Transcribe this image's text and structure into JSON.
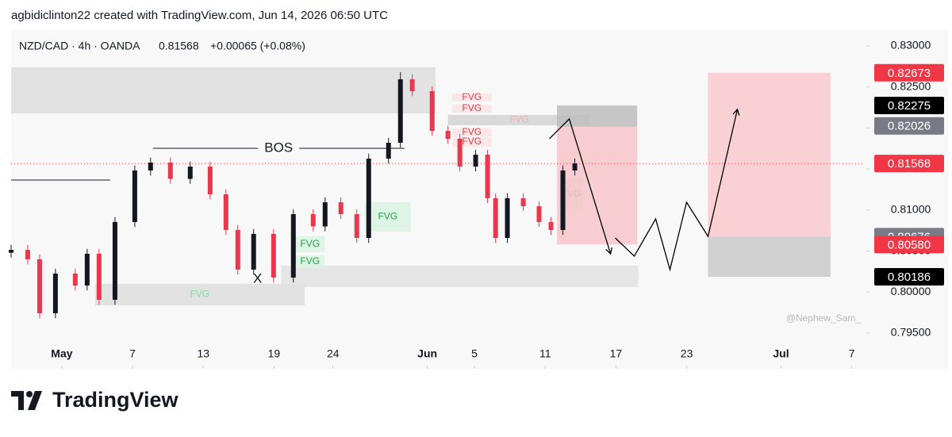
{
  "header": {
    "credit": "agbidiclinton22 created with TradingView.com, Jun 14, 2026 06:50 UTC"
  },
  "footer": {
    "brand": "TradingView"
  },
  "chart_data": {
    "type": "candlestick",
    "title": "NZD/CAD · 4h · OANDA",
    "last": 0.81568,
    "change_label": "+0.00065 (+0.08%)",
    "watermark": "@Nephew_Sam_",
    "up_color": "#131722",
    "down_color": "#e8384f",
    "x": [
      -3.3,
      -1.89,
      -0.88,
      0.46,
      2.14,
      3.15,
      4.16,
      5.51,
      7.19,
      8.53,
      10.21,
      11.89,
      13.58,
      14.92,
      15.93,
      17.27,
      18.96,
      20.64,
      22.32,
      23.33,
      24.67,
      26.02,
      27.03,
      28.71,
      29.72,
      30.72,
      32.41,
      33.75,
      34.76,
      36.1,
      37.11,
      37.79,
      38.79,
      40.14,
      41.48,
      42.49,
      43.5,
      44.51
    ],
    "open": [
      0.8048,
      0.80515,
      0.804,
      0.79742,
      0.80225,
      0.8008,
      0.80467,
      0.79906,
      0.80854,
      0.81482,
      0.81579,
      0.8138,
      0.8153,
      0.81192,
      0.80757,
      0.80274,
      0.80709,
      0.80177,
      0.8095,
      0.808,
      0.81095,
      0.8095,
      0.8066,
      0.81627,
      0.8182,
      0.82594,
      0.82449,
      0.81965,
      0.81869,
      0.8153,
      0.81675,
      0.81144,
      0.8066,
      0.81144,
      0.81047,
      0.80854,
      0.80757,
      0.81482
    ],
    "high": [
      0.80575,
      0.80575,
      0.8046,
      0.80285,
      0.80285,
      0.80527,
      0.80527,
      0.80914,
      0.81542,
      0.81639,
      0.81639,
      0.8159,
      0.8159,
      0.81252,
      0.80817,
      0.80769,
      0.80769,
      0.8101,
      0.8101,
      0.81155,
      0.81155,
      0.8101,
      0.81687,
      0.8188,
      0.8268,
      0.82654,
      0.82509,
      0.82025,
      0.81929,
      0.81735,
      0.81735,
      0.81204,
      0.81204,
      0.81204,
      0.81107,
      0.80914,
      0.81542,
      0.81628
    ],
    "low": [
      0.8042,
      0.8034,
      0.79682,
      0.79682,
      0.8002,
      0.8002,
      0.79846,
      0.79846,
      0.80794,
      0.81422,
      0.8132,
      0.8132,
      0.81132,
      0.80697,
      0.80214,
      0.80214,
      0.80117,
      0.80117,
      0.8074,
      0.8074,
      0.8089,
      0.806,
      0.806,
      0.81567,
      0.8176,
      0.82389,
      0.81905,
      0.81809,
      0.8147,
      0.8147,
      0.81084,
      0.806,
      0.806,
      0.80987,
      0.80794,
      0.80697,
      0.80697,
      0.81422
    ],
    "close": [
      0.80515,
      0.804,
      0.79742,
      0.80225,
      0.8008,
      0.80467,
      0.79906,
      0.80854,
      0.81482,
      0.81579,
      0.8138,
      0.8153,
      0.81192,
      0.80757,
      0.80274,
      0.80709,
      0.80177,
      0.8095,
      0.808,
      0.81095,
      0.8095,
      0.8066,
      0.81627,
      0.8182,
      0.82594,
      0.82449,
      0.81965,
      0.81869,
      0.8153,
      0.81675,
      0.81144,
      0.8066,
      0.81144,
      0.81047,
      0.80854,
      0.80757,
      0.81482,
      0.81568
    ],
    "xlim": [
      -3.3,
      69.1
    ],
    "xticks": [
      {
        "value": 1,
        "label": "May"
      },
      7,
      13,
      19,
      24,
      {
        "value": 32,
        "label": "Jun"
      },
      {
        "value": 36,
        "label": "5"
      },
      {
        "value": 42,
        "label": "11"
      },
      {
        "value": 48,
        "label": "17"
      },
      {
        "value": 54,
        "label": "23"
      },
      {
        "value": 62,
        "label": "Jul"
      },
      {
        "value": 68,
        "label": "7"
      }
    ],
    "ylim": [
      0.79065,
      0.83193
    ],
    "yticks": [
      {
        "value": 0.795,
        "label": "0.79500"
      },
      {
        "value": 0.8,
        "label": "0.80000"
      },
      {
        "value": 0.805,
        "label": "0.80500"
      },
      {
        "value": 0.81,
        "label": "0.81000"
      },
      {
        "value": 0.815,
        "label": "0.81500"
      },
      {
        "value": 0.82,
        "label": "0.82000"
      },
      {
        "value": 0.825,
        "label": "0.82500"
      },
      {
        "value": 0.83,
        "label": "0.83000"
      }
    ],
    "price_labels": [
      {
        "price": 0.82673,
        "color": "#f23645"
      },
      {
        "price": 0.82275,
        "color": "#000000"
      },
      {
        "price": 0.82026,
        "color": "#787b86"
      },
      {
        "price": 0.81568,
        "color": "#f23645"
      },
      {
        "price": 0.80676,
        "color": "#787b86"
      },
      {
        "price": 0.8058,
        "label": "0.80580",
        "color": "#f23645"
      },
      {
        "price": 0.80186,
        "color": "#000000"
      }
    ],
    "zones": [
      {
        "x0": -3.3,
        "x1": 32.7,
        "y0": 0.82178,
        "y1": 0.82739,
        "color": "#dedede"
      },
      {
        "x0": 3.82,
        "x1": 21.6,
        "y0": 0.79838,
        "y1": 0.801,
        "color": "#dedede",
        "label": "FVG",
        "label_color": "#86d9a0"
      },
      {
        "x0": 19.6,
        "x1": 49.9,
        "y0": 0.80061,
        "y1": 0.80322,
        "color": "#e2e2e2"
      },
      {
        "x0": 33.75,
        "x1": 45.85,
        "y0": 0.82033,
        "y1": 0.82159,
        "color": "#d4d4d4",
        "label": "FVG",
        "label_color": "#e7b6ba"
      },
      {
        "x0": 26.7,
        "x1": 30.6,
        "y0": 0.80738,
        "y1": 0.81095,
        "color": "#d9f5e2",
        "label": "FVG",
        "label_color": "#22a04b"
      },
      {
        "x0": 20.8,
        "x1": 23.3,
        "y0": 0.80486,
        "y1": 0.8068,
        "color": "#d9f5e2",
        "label": "FVG",
        "label_color": "#22a04b"
      },
      {
        "x0": 20.8,
        "x1": 23.3,
        "y0": 0.80293,
        "y1": 0.80448,
        "color": "#d9f5e2",
        "label": "FVG",
        "label_color": "#22a04b"
      },
      {
        "x0": 43.2,
        "x1": 45.2,
        "y0": 0.80999,
        "y1": 0.81385,
        "color": "#d2ead8",
        "label": "FVG",
        "label_color": "#22a04b"
      },
      {
        "x0": 34.1,
        "x1": 37.45,
        "y0": 0.82323,
        "y1": 0.8242,
        "color": "#fbe3e5",
        "label": "FVG",
        "label_color": "#e04050"
      },
      {
        "x0": 34.1,
        "x1": 37.45,
        "y0": 0.82188,
        "y1": 0.82285,
        "color": "#fbe3e5",
        "label": "FVG",
        "label_color": "#e04050"
      },
      {
        "x0": 34.1,
        "x1": 37.45,
        "y0": 0.81898,
        "y1": 0.81994,
        "color": "#fbe3e5",
        "label": "FVG",
        "label_color": "#e04050"
      },
      {
        "x0": 34.1,
        "x1": 37.45,
        "y0": 0.81772,
        "y1": 0.81888,
        "color": "#fbe3e5",
        "label": "FVG",
        "label_color": "#e04050"
      },
      {
        "x0": 43.0,
        "x1": 49.8,
        "y0": 0.82014,
        "y1": 0.82275,
        "color": "#bdbdbd"
      },
      {
        "x0": 43.0,
        "x1": 49.8,
        "y0": 0.8058,
        "y1": 0.82014,
        "color": "#f8c6ca"
      },
      {
        "x0": 55.8,
        "x1": 66.2,
        "y0": 0.80676,
        "y1": 0.82673,
        "color": "#f9c9cc"
      },
      {
        "x0": 55.8,
        "x1": 66.2,
        "y0": 0.80186,
        "y1": 0.80676,
        "color": "#c9c9c9"
      }
    ],
    "levels": [
      {
        "x0": 8.73,
        "x1": 30.05,
        "y": 0.81753,
        "label": "BOS"
      },
      {
        "x0": -3.3,
        "x1": 5.1,
        "y": 0.81366
      }
    ],
    "annotations": [
      {
        "text": "X",
        "x": 17.6,
        "y": 0.80157
      }
    ],
    "paths": [
      {
        "x": [
          42.36,
          44.04,
          47.54
        ],
        "y": [
          0.81869,
          0.82111,
          0.80467
        ]
      },
      {
        "x": [
          47.94,
          49.55,
          51.37,
          52.58,
          53.99,
          55.81,
          58.3
        ],
        "y": [
          0.8066,
          0.80438,
          0.80892,
          0.80274,
          0.81095,
          0.80679,
          0.82227
        ]
      }
    ]
  }
}
